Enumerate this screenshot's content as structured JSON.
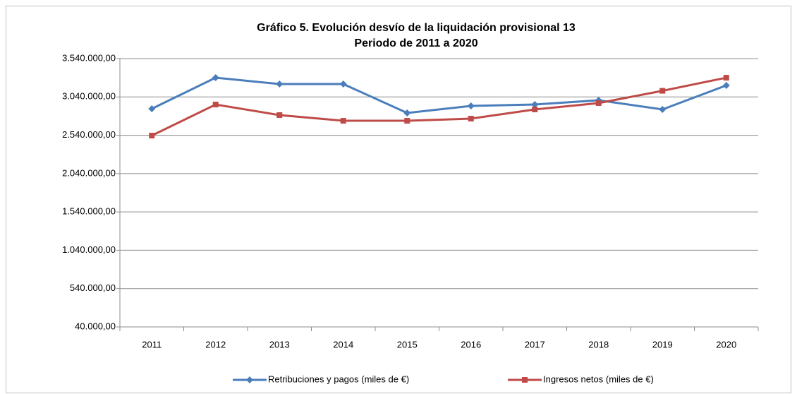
{
  "chart_data": {
    "type": "line",
    "title": "Gráfico 5. Evolución desvío de la liquidación  provisional 13",
    "subtitle": "Periodo de 2011 a 2020",
    "categories": [
      "2011",
      "2012",
      "2013",
      "2014",
      "2015",
      "2016",
      "2017",
      "2018",
      "2019",
      "2020"
    ],
    "series": [
      {
        "name": "Retribuciones y pagos (miles de €)",
        "color": "#4a7ebb",
        "marker": "diamond",
        "values": [
          2886000,
          3291000,
          3208000,
          3208000,
          2831000,
          2923000,
          2941000,
          2997000,
          2877000,
          3190000
        ]
      },
      {
        "name": "Ingresos netos (miles de €)",
        "color": "#be4b48",
        "marker": "square",
        "values": [
          2536000,
          2941000,
          2803000,
          2729000,
          2729000,
          2757000,
          2877000,
          2960000,
          3120000,
          3291000
        ]
      }
    ],
    "ylim": [
      40000,
      3540000
    ],
    "yticks": [
      {
        "value": 40000,
        "label": "40.000,00"
      },
      {
        "value": 540000,
        "label": "540.000,00"
      },
      {
        "value": 1040000,
        "label": "1.040.000,00"
      },
      {
        "value": 1540000,
        "label": "1.540.000,00"
      },
      {
        "value": 2040000,
        "label": "2.040.000,00"
      },
      {
        "value": 2540000,
        "label": "2.540.000,00"
      },
      {
        "value": 3040000,
        "label": "3.040.000,00"
      },
      {
        "value": 3540000,
        "label": "3.540.000,00"
      }
    ],
    "grid": true,
    "legend": "bottom"
  }
}
